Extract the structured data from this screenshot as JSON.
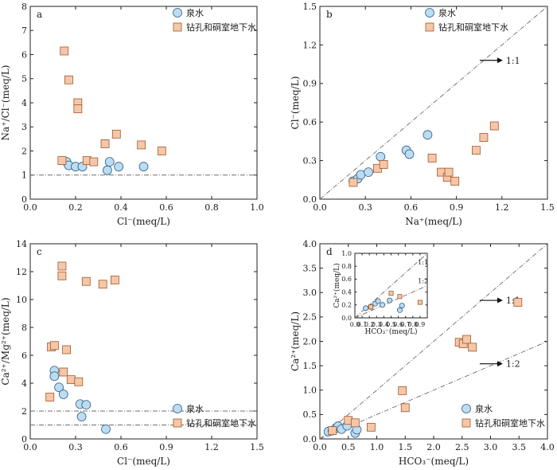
{
  "colors": {
    "spring_fill": "#bcdcf2",
    "spring_stroke": "#2f5d86",
    "well_fill": "#f5c7a8",
    "well_stroke": "#a0582a",
    "ref_line": "#6e6e6e"
  },
  "chart_data": [
    {
      "id": "a",
      "type": "scatter",
      "panel_label": "a",
      "xlabel": "Cl⁻(meq/L)",
      "ylabel": "Na⁺/Cl⁻(meq/L)",
      "xlim": [
        0,
        1.0
      ],
      "ylim": [
        0,
        8
      ],
      "xticks": [
        0,
        0.2,
        0.4,
        0.6,
        0.8,
        1.0
      ],
      "xtick_labels": [
        "0.0",
        "0.2",
        "0.4",
        "0.6",
        "0.8",
        "1.0"
      ],
      "yticks": [
        0,
        1,
        2,
        3,
        4,
        5,
        6,
        7,
        8
      ],
      "ytick_labels": [
        "0",
        "1",
        "2",
        "3",
        "4",
        "5",
        "6",
        "7",
        "8"
      ],
      "legend": {
        "position": "top-left",
        "entries": [
          "泉水",
          "钻孔和硐室地下水"
        ]
      },
      "ref_lines": [
        {
          "type": "h",
          "value": 1
        }
      ],
      "series": [
        {
          "name": "泉水",
          "marker": "circle",
          "points": [
            [
              0.16,
              1.55
            ],
            [
              0.17,
              1.4
            ],
            [
              0.2,
              1.35
            ],
            [
              0.23,
              1.35
            ],
            [
              0.34,
              1.2
            ],
            [
              0.35,
              1.55
            ],
            [
              0.39,
              1.35
            ],
            [
              0.5,
              1.35
            ]
          ]
        },
        {
          "name": "钻孔和硐室地下水",
          "marker": "square",
          "points": [
            [
              0.14,
              1.6
            ],
            [
              0.15,
              6.15
            ],
            [
              0.17,
              4.95
            ],
            [
              0.21,
              4.0
            ],
            [
              0.21,
              3.75
            ],
            [
              0.25,
              1.6
            ],
            [
              0.28,
              1.55
            ],
            [
              0.33,
              2.3
            ],
            [
              0.38,
              2.7
            ],
            [
              0.49,
              2.25
            ],
            [
              0.58,
              2.0
            ]
          ]
        }
      ]
    },
    {
      "id": "b",
      "type": "scatter",
      "panel_label": "b",
      "xlabel": "Na⁺(meq/L)",
      "ylabel": "Cl⁻(meq/L)",
      "xlim": [
        0,
        1.5
      ],
      "ylim": [
        0,
        1.5
      ],
      "xticks": [
        0,
        0.3,
        0.6,
        0.9,
        1.2,
        1.5
      ],
      "xtick_labels": [
        "0.0",
        "0.3",
        "0.6",
        "0.9",
        "1.2",
        "1.5"
      ],
      "yticks": [
        0,
        0.3,
        0.6,
        0.9,
        1.2,
        1.5
      ],
      "ytick_labels": [
        "0.0",
        "0.3",
        "0.6",
        "0.9",
        "1.2",
        "1.5"
      ],
      "legend": {
        "position": "top-left",
        "entries": [
          "泉水",
          "钻孔和硐室地下水"
        ]
      },
      "ref_lines": [
        {
          "type": "slope",
          "slope": 1,
          "label": "1:1"
        }
      ],
      "series": [
        {
          "name": "泉水",
          "marker": "circle",
          "points": [
            [
              0.22,
              0.14
            ],
            [
              0.25,
              0.16
            ],
            [
              0.27,
              0.19
            ],
            [
              0.32,
              0.21
            ],
            [
              0.4,
              0.33
            ],
            [
              0.57,
              0.38
            ],
            [
              0.59,
              0.35
            ],
            [
              0.71,
              0.5
            ]
          ]
        },
        {
          "name": "钻孔和硐室地下水",
          "marker": "square",
          "points": [
            [
              0.22,
              0.13
            ],
            [
              0.38,
              0.24
            ],
            [
              0.42,
              0.27
            ],
            [
              0.74,
              0.32
            ],
            [
              0.8,
              0.21
            ],
            [
              0.84,
              0.17
            ],
            [
              0.85,
              0.21
            ],
            [
              0.89,
              0.14
            ],
            [
              1.03,
              0.38
            ],
            [
              1.08,
              0.48
            ],
            [
              1.15,
              0.57
            ]
          ]
        }
      ]
    },
    {
      "id": "c",
      "type": "scatter",
      "panel_label": "c",
      "xlabel": "Cl⁻(meq/L)",
      "ylabel": "Ca²⁺/Mg²⁺(meq/L)",
      "xlim": [
        0,
        1.5
      ],
      "ylim": [
        0,
        14
      ],
      "xticks": [
        0,
        0.3,
        0.6,
        0.9,
        1.2,
        1.5
      ],
      "xtick_labels": [
        "0.0",
        "0.3",
        "0.6",
        "0.9",
        "1.2",
        "1.5"
      ],
      "yticks": [
        0,
        2,
        4,
        6,
        8,
        10,
        12,
        14
      ],
      "ytick_labels": [
        "0",
        "2",
        "4",
        "6",
        "8",
        "10",
        "12",
        "14"
      ],
      "legend": {
        "position": "bottom-right",
        "entries": [
          "泉水",
          "钻孔和硐室地下水"
        ]
      },
      "ref_lines": [
        {
          "type": "h",
          "value": 2
        },
        {
          "type": "h",
          "value": 1
        }
      ],
      "series": [
        {
          "name": "泉水",
          "marker": "circle",
          "points": [
            [
              0.16,
              4.9
            ],
            [
              0.16,
              4.5
            ],
            [
              0.19,
              3.7
            ],
            [
              0.22,
              3.2
            ],
            [
              0.33,
              2.5
            ],
            [
              0.34,
              1.6
            ],
            [
              0.37,
              2.45
            ],
            [
              0.5,
              0.7
            ]
          ]
        },
        {
          "name": "钻孔和硐室地下水",
          "marker": "square",
          "points": [
            [
              0.13,
              3.0
            ],
            [
              0.14,
              6.6
            ],
            [
              0.16,
              6.7
            ],
            [
              0.21,
              12.4
            ],
            [
              0.21,
              11.7
            ],
            [
              0.22,
              4.8
            ],
            [
              0.24,
              6.4
            ],
            [
              0.27,
              4.25
            ],
            [
              0.32,
              4.1
            ],
            [
              0.37,
              11.3
            ],
            [
              0.48,
              11.1
            ],
            [
              0.56,
              11.4
            ]
          ]
        }
      ]
    },
    {
      "id": "d",
      "type": "scatter",
      "panel_label": "d",
      "xlabel": "HCO₃⁻(meq/L)",
      "ylabel": "Ca²⁺(meq/L)",
      "xlim": [
        0,
        4.0
      ],
      "ylim": [
        0,
        4.0
      ],
      "xticks": [
        0,
        0.5,
        1,
        1.5,
        2,
        2.5,
        3,
        3.5,
        4
      ],
      "xtick_labels": [
        "0.0",
        "0.5",
        "1.0",
        "1.5",
        "2.0",
        "2.5",
        "3.0",
        "3.5",
        "4.0"
      ],
      "yticks": [
        0,
        0.5,
        1,
        1.5,
        2,
        2.5,
        3,
        3.5,
        4
      ],
      "ytick_labels": [
        "0.0",
        "0.5",
        "1.0",
        "1.5",
        "2.0",
        "2.5",
        "3.0",
        "3.5",
        "4.0"
      ],
      "legend": {
        "position": "bottom-right",
        "entries": [
          "泉水",
          "钻孔和硐室地下水"
        ]
      },
      "ref_lines": [
        {
          "type": "slope",
          "slope": 1,
          "label": "1:1"
        },
        {
          "type": "slope",
          "slope": 0.5,
          "label": "1:2"
        }
      ],
      "series": [
        {
          "name": "泉水",
          "marker": "circle",
          "points": [
            [
              0.15,
              0.15
            ],
            [
              0.22,
              0.17
            ],
            [
              0.28,
              0.22
            ],
            [
              0.32,
              0.26
            ],
            [
              0.38,
              0.2
            ],
            [
              0.48,
              0.27
            ],
            [
              0.62,
              0.12
            ],
            [
              0.65,
              0.19
            ]
          ]
        },
        {
          "name": "钻孔和硐室地下水",
          "marker": "square",
          "points": [
            [
              0.22,
              0.17
            ],
            [
              0.5,
              0.38
            ],
            [
              0.62,
              0.33
            ],
            [
              0.9,
              0.24
            ],
            [
              1.45,
              0.99
            ],
            [
              1.5,
              0.64
            ],
            [
              2.45,
              1.98
            ],
            [
              2.52,
              1.95
            ],
            [
              2.58,
              2.04
            ],
            [
              2.68,
              1.88
            ],
            [
              3.48,
              2.8
            ]
          ]
        }
      ]
    },
    {
      "id": "d-inset",
      "type": "scatter",
      "panel_label": "",
      "xlabel": "HCO₃⁻(meq/L)",
      "ylabel": "Ca²⁺(meq/L)",
      "xlim": [
        0,
        1.0
      ],
      "ylim": [
        0,
        1.0
      ],
      "xticks": [
        0,
        0.1,
        0.2,
        0.3,
        0.4,
        0.5,
        0.6,
        0.7,
        0.8,
        0.9
      ],
      "xtick_labels": [
        "0.0",
        "0.1",
        "0.2",
        "0.3",
        "0.4",
        "0.5",
        "0.6",
        "0.7",
        "0.8",
        "0.9"
      ],
      "yticks": [
        0,
        0.2,
        0.4,
        0.6,
        0.8,
        1.0
      ],
      "ytick_labels": [
        "0.0",
        "0.2",
        "0.4",
        "0.6",
        "0.8",
        "1.0"
      ],
      "ref_lines": [
        {
          "type": "slope",
          "slope": 1,
          "label": "1:1"
        },
        {
          "type": "slope",
          "slope": 0.5,
          "label": "1:2"
        }
      ],
      "series": [
        {
          "name": "泉水",
          "marker": "circle",
          "points": [
            [
              0.15,
              0.15
            ],
            [
              0.22,
              0.17
            ],
            [
              0.28,
              0.22
            ],
            [
              0.32,
              0.26
            ],
            [
              0.38,
              0.2
            ],
            [
              0.48,
              0.27
            ],
            [
              0.62,
              0.12
            ],
            [
              0.65,
              0.19
            ]
          ]
        },
        {
          "name": "钻孔和硐室地下水",
          "marker": "square",
          "points": [
            [
              0.22,
              0.17
            ],
            [
              0.5,
              0.38
            ],
            [
              0.62,
              0.33
            ],
            [
              0.9,
              0.24
            ]
          ]
        }
      ]
    }
  ]
}
